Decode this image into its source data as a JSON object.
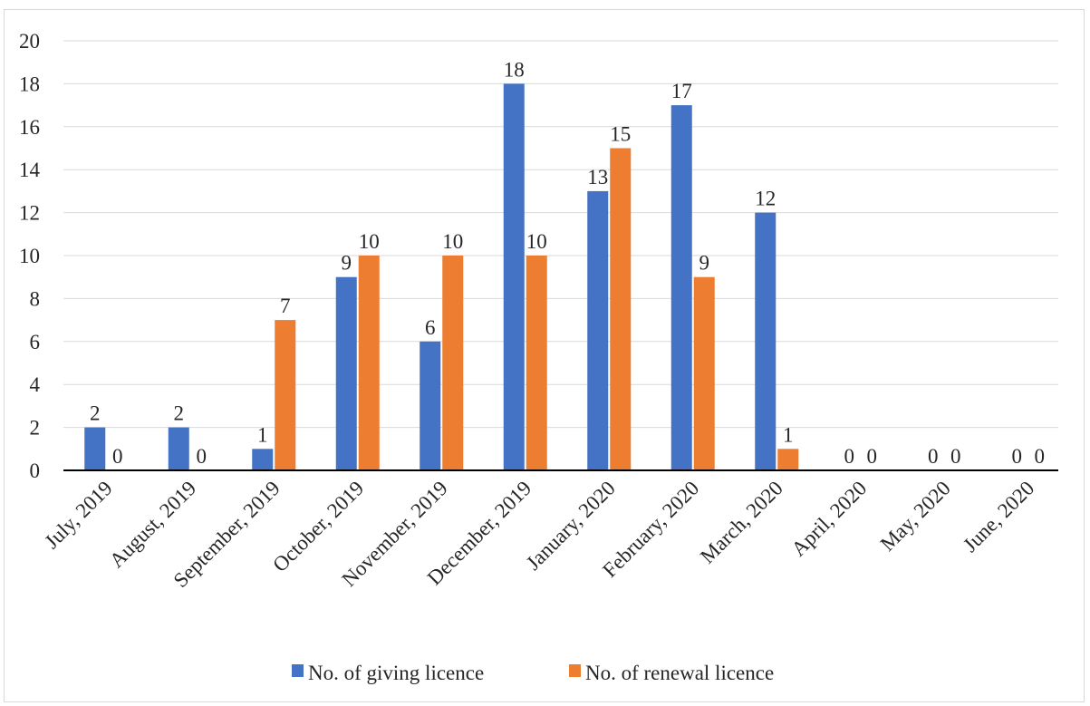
{
  "chart_data": {
    "type": "bar",
    "categories": [
      "July, 2019",
      "August, 2019",
      "September, 2019",
      "October, 2019",
      "November, 2019",
      "December, 2019",
      "January, 2020",
      "February, 2020",
      "March, 2020",
      "April, 2020",
      "May, 2020",
      "June, 2020"
    ],
    "series": [
      {
        "name": "No. of giving licence",
        "values": [
          2,
          2,
          1,
          9,
          6,
          18,
          13,
          17,
          12,
          0,
          0,
          0
        ],
        "color": "#4472C4"
      },
      {
        "name": "No. of renewal licence",
        "values": [
          0,
          0,
          7,
          10,
          10,
          10,
          15,
          9,
          1,
          0,
          0,
          0
        ],
        "color": "#ED7D31"
      }
    ],
    "yticks": [
      "0",
      "2",
      "4",
      "6",
      "8",
      "10",
      "12",
      "14",
      "16",
      "18",
      "20"
    ],
    "ylim": [
      0,
      20
    ],
    "grid": true,
    "legend_position": "bottom",
    "data_labels": true
  }
}
